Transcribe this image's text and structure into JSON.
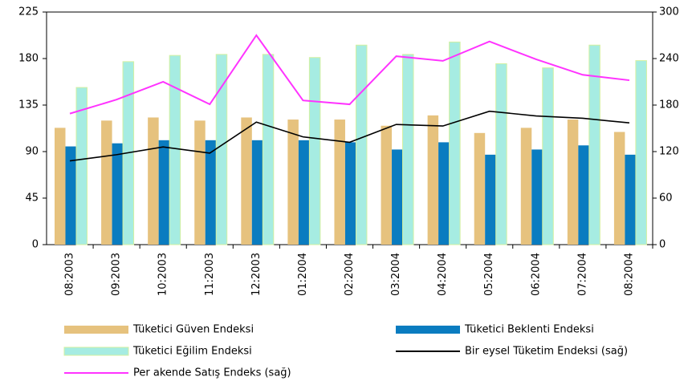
{
  "chart_data": {
    "type": "bar-line",
    "categories": [
      "08:2003",
      "09:2003",
      "10:2003",
      "11:2003",
      "12:2003",
      "01:2004",
      "02:2004",
      "03:2004",
      "04:2004",
      "05:2004",
      "06:2004",
      "07:2004",
      "08:2004"
    ],
    "series": [
      {
        "name": "Tüketici Güven Endeksi",
        "type": "bar",
        "color": "#e6c27e",
        "values": [
          113,
          120,
          123,
          120,
          123,
          121,
          121,
          115,
          125,
          108,
          113,
          121,
          109
        ]
      },
      {
        "name": "Tüketici Beklenti Endeksi",
        "type": "bar",
        "color": "#0a7cc0",
        "values": [
          95,
          98,
          101,
          101,
          101,
          101,
          99,
          92,
          99,
          87,
          92,
          96,
          87
        ]
      },
      {
        "name": "Tüketici Eğilim Endeksi",
        "type": "bar",
        "color": "#a6ece2",
        "values": [
          152,
          177,
          183,
          184,
          184,
          181,
          193,
          184,
          196,
          175,
          171,
          193,
          178
        ]
      },
      {
        "name": "Bir eysel Tüketim Endeksi (sağ)",
        "type": "line",
        "axis": "y2",
        "color": "#000000",
        "values": [
          108,
          116,
          126,
          118,
          158,
          139,
          132,
          155,
          153,
          172,
          166,
          163,
          157
        ]
      },
      {
        "name": "Per akende Satış Endeks (sağ)",
        "type": "line",
        "axis": "y2",
        "color": "#ff33ff",
        "values": [
          169,
          187,
          210,
          181,
          270,
          186,
          181,
          243,
          237,
          262,
          239,
          219,
          212
        ]
      }
    ],
    "ylim": [
      0,
      225
    ],
    "yticks": [
      0,
      45,
      90,
      135,
      180,
      225
    ],
    "y2lim": [
      0,
      300
    ],
    "y2ticks": [
      0,
      60,
      120,
      180,
      240,
      300
    ]
  }
}
